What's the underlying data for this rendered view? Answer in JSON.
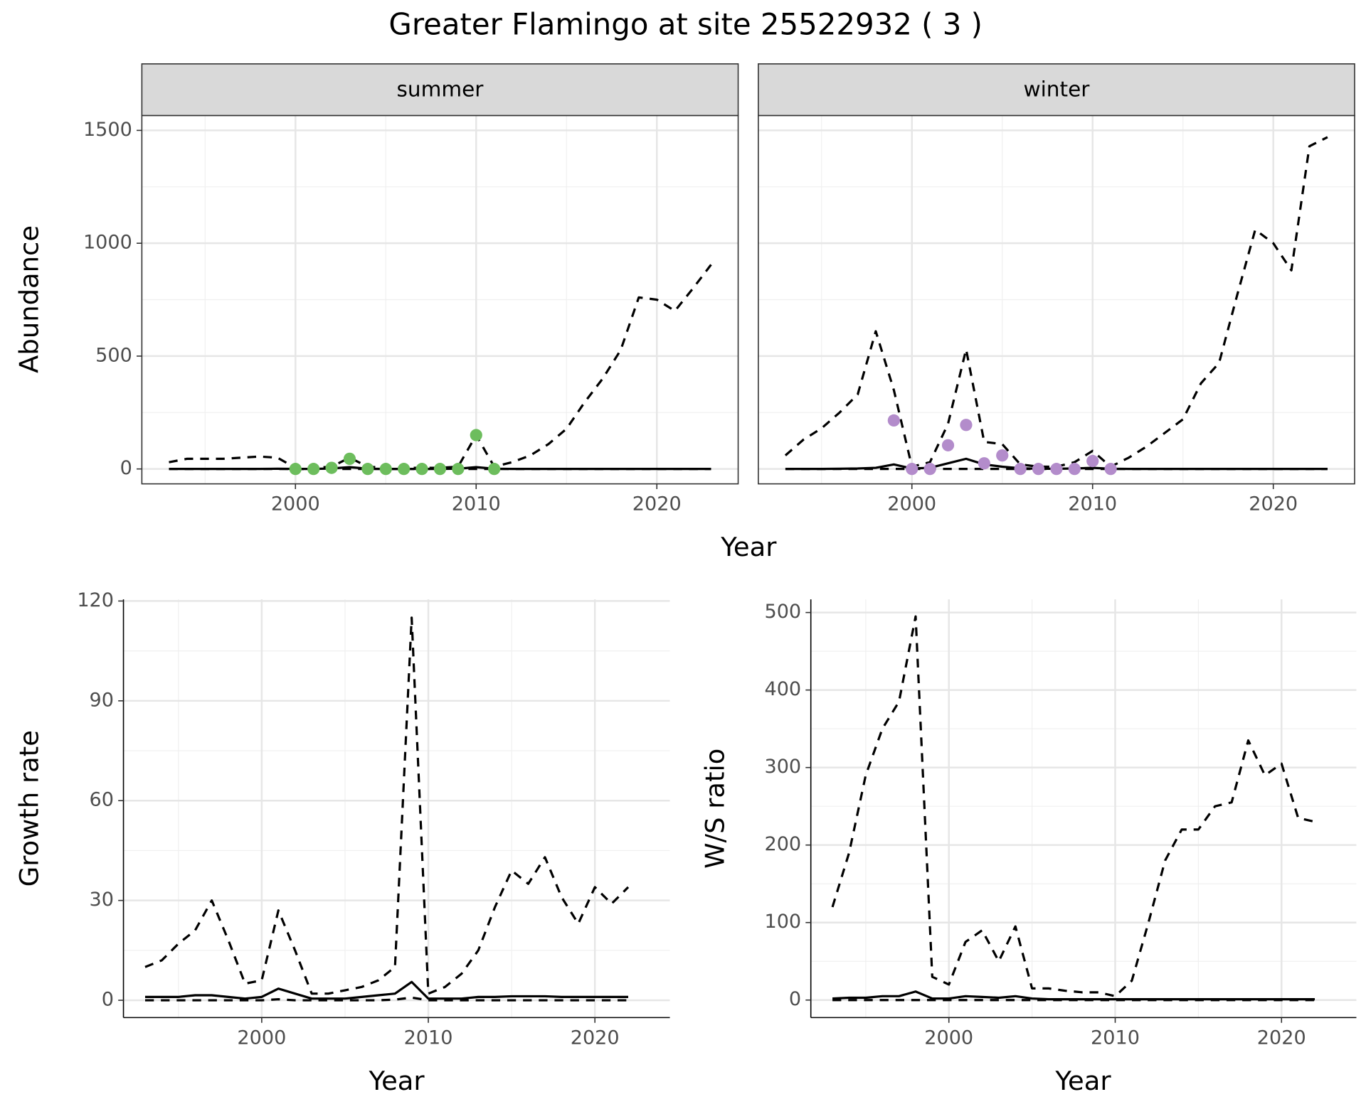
{
  "title": "Greater Flamingo at site 25522932 ( 3 )",
  "chart_data": [
    {
      "type": "line",
      "strip": "summer",
      "xlabel": "Year",
      "ylabel": "Abundance",
      "xlim": [
        1991.5,
        2024.5
      ],
      "ylim": [
        -66,
        1566
      ],
      "xticks": [
        2000,
        2010,
        2020
      ],
      "yticks": [
        0,
        500,
        1000,
        1500
      ],
      "xminor": [
        1995,
        2005,
        2015
      ],
      "yminor": [
        250,
        750,
        1250
      ],
      "grid": true,
      "series": [
        {
          "style": "dashed",
          "color": "#000000",
          "x": [
            1993,
            1994,
            1995,
            1996,
            1997,
            1998,
            1999,
            2000,
            2001,
            2002,
            2003,
            2004,
            2005,
            2006,
            2007,
            2008,
            2009,
            2010,
            2011,
            2012,
            2013,
            2014,
            2015,
            2016,
            2017,
            2018,
            2019,
            2020,
            2021,
            2022,
            2023
          ],
          "values": [
            30,
            45,
            45,
            45,
            50,
            55,
            50,
            5,
            5,
            10,
            50,
            10,
            5,
            5,
            5,
            5,
            10,
            150,
            10,
            30,
            60,
            110,
            178,
            295,
            400,
            527,
            760,
            750,
            700,
            800,
            905
          ]
        },
        {
          "style": "solid",
          "color": "#000000",
          "x": [
            1993,
            1994,
            1995,
            1996,
            1997,
            1998,
            1999,
            2000,
            2001,
            2002,
            2003,
            2004,
            2005,
            2006,
            2007,
            2008,
            2009,
            2010,
            2011,
            2012,
            2013,
            2014,
            2015,
            2016,
            2017,
            2018,
            2019,
            2020,
            2021,
            2022,
            2023
          ],
          "values": [
            0,
            0,
            0,
            0,
            0,
            0,
            1,
            0,
            0,
            2,
            8,
            1,
            0,
            0,
            0,
            0,
            1,
            8,
            1,
            0,
            0,
            0,
            0,
            0,
            0,
            0,
            0,
            0,
            0,
            0,
            0
          ]
        },
        {
          "style": "dashed",
          "color": "#000000",
          "x": [
            1993,
            1994,
            1995,
            1996,
            1997,
            1998,
            1999,
            2000,
            2001,
            2002,
            2003,
            2004,
            2005,
            2006,
            2007,
            2008,
            2009,
            2010,
            2011,
            2012,
            2013,
            2014,
            2015,
            2016,
            2017,
            2018,
            2019,
            2020,
            2021,
            2022,
            2023
          ],
          "values": [
            0,
            0,
            0,
            0,
            0,
            0,
            0,
            0,
            0,
            0,
            0,
            0,
            0,
            0,
            0,
            0,
            0,
            0,
            0,
            0,
            0,
            0,
            0,
            0,
            0,
            0,
            0,
            0,
            0,
            0,
            0
          ]
        },
        {
          "style": "points",
          "color": "#6dbd5d",
          "x": [
            2000,
            2001,
            2002,
            2003,
            2004,
            2005,
            2006,
            2007,
            2008,
            2009,
            2010,
            2011
          ],
          "values": [
            0,
            0,
            5,
            45,
            0,
            0,
            0,
            0,
            0,
            0,
            150,
            0
          ]
        }
      ]
    },
    {
      "type": "line",
      "strip": "winter",
      "xlim": [
        1991.5,
        2024.5
      ],
      "ylim": [
        -66,
        1566
      ],
      "xticks": [
        2000,
        2010,
        2020
      ],
      "yticks": [
        0,
        500,
        1000,
        1500
      ],
      "xminor": [
        1995,
        2005,
        2015
      ],
      "yminor": [
        250,
        750,
        1250
      ],
      "grid": true,
      "series": [
        {
          "style": "dashed",
          "color": "#000000",
          "x": [
            1993,
            1994,
            1995,
            1996,
            1997,
            1998,
            1999,
            2000,
            2001,
            2002,
            2003,
            2004,
            2005,
            2006,
            2007,
            2008,
            2009,
            2010,
            2011,
            2012,
            2013,
            2014,
            2015,
            2016,
            2017,
            2018,
            2019,
            2020,
            2021,
            2022,
            2023
          ],
          "values": [
            60,
            130,
            180,
            250,
            330,
            610,
            350,
            10,
            30,
            200,
            530,
            120,
            110,
            20,
            10,
            10,
            30,
            80,
            10,
            50,
            100,
            160,
            220,
            380,
            470,
            770,
            1060,
            1000,
            880,
            1430,
            1470
          ]
        },
        {
          "style": "solid",
          "color": "#000000",
          "x": [
            1993,
            1994,
            1995,
            1996,
            1997,
            1998,
            1999,
            2000,
            2001,
            2002,
            2003,
            2004,
            2005,
            2006,
            2007,
            2008,
            2009,
            2010,
            2011,
            2012,
            2013,
            2014,
            2015,
            2016,
            2017,
            2018,
            2019,
            2020,
            2021,
            2022,
            2023
          ],
          "values": [
            0,
            0,
            0,
            1,
            2,
            5,
            20,
            2,
            5,
            25,
            45,
            20,
            10,
            3,
            1,
            1,
            2,
            5,
            1,
            0,
            0,
            0,
            0,
            0,
            0,
            0,
            0,
            0,
            0,
            0,
            0
          ]
        },
        {
          "style": "dashed",
          "color": "#000000",
          "x": [
            1993,
            1994,
            1995,
            1996,
            1997,
            1998,
            1999,
            2000,
            2001,
            2002,
            2003,
            2004,
            2005,
            2006,
            2007,
            2008,
            2009,
            2010,
            2011,
            2012,
            2013,
            2014,
            2015,
            2016,
            2017,
            2018,
            2019,
            2020,
            2021,
            2022,
            2023
          ],
          "values": [
            0,
            0,
            0,
            0,
            0,
            0,
            0,
            0,
            0,
            0,
            0,
            0,
            0,
            0,
            0,
            0,
            0,
            0,
            0,
            0,
            0,
            0,
            0,
            0,
            0,
            0,
            0,
            0,
            0,
            0,
            0
          ]
        },
        {
          "style": "points",
          "color": "#b38ccb",
          "x": [
            1999,
            2000,
            2001,
            2002,
            2003,
            2004,
            2005,
            2006,
            2007,
            2008,
            2009,
            2010,
            2011
          ],
          "values": [
            215,
            0,
            0,
            105,
            195,
            25,
            60,
            0,
            0,
            0,
            0,
            35,
            0
          ]
        }
      ]
    },
    {
      "type": "line",
      "xlabel": "Year",
      "ylabel": "Growth rate",
      "xlim": [
        1991.7,
        2024.5
      ],
      "ylim": [
        -5.2,
        120.5
      ],
      "xticks": [
        2000,
        2010,
        2020
      ],
      "yticks": [
        0,
        30,
        60,
        90,
        120
      ],
      "xminor": [
        1995,
        2005,
        2015
      ],
      "yminor": [
        15,
        45,
        75,
        105
      ],
      "grid": true,
      "series": [
        {
          "style": "dashed",
          "color": "#000000",
          "x": [
            1993,
            1994,
            1995,
            1996,
            1997,
            1998,
            1999,
            2000,
            2001,
            2002,
            2003,
            2004,
            2005,
            2006,
            2007,
            2008,
            2009,
            2010,
            2011,
            2012,
            2013,
            2014,
            2015,
            2016,
            2017,
            2018,
            2019,
            2020,
            2021,
            2022
          ],
          "values": [
            10,
            12,
            17,
            21,
            30,
            18,
            5,
            6,
            27,
            15,
            2,
            2,
            3,
            4,
            6,
            10,
            115,
            2,
            4,
            8,
            15,
            28,
            39,
            35,
            43,
            31,
            23,
            34,
            29,
            34
          ]
        },
        {
          "style": "solid",
          "color": "#000000",
          "x": [
            1993,
            1994,
            1995,
            1996,
            1997,
            1998,
            1999,
            2000,
            2001,
            2002,
            2003,
            2004,
            2005,
            2006,
            2007,
            2008,
            2009,
            2010,
            2011,
            2012,
            2013,
            2014,
            2015,
            2016,
            2017,
            2018,
            2019,
            2020,
            2021,
            2022
          ],
          "values": [
            1,
            1,
            1,
            1.5,
            1.5,
            1,
            0.5,
            1,
            3.5,
            2,
            0.5,
            0.5,
            0.5,
            1,
            1.5,
            2,
            5.5,
            0.5,
            0.5,
            0.5,
            1,
            1,
            1.2,
            1.2,
            1.2,
            1,
            1,
            1,
            1,
            1
          ]
        },
        {
          "style": "dashed",
          "color": "#000000",
          "x": [
            1993,
            1994,
            1995,
            1996,
            1997,
            1998,
            1999,
            2000,
            2001,
            2002,
            2003,
            2004,
            2005,
            2006,
            2007,
            2008,
            2009,
            2010,
            2011,
            2012,
            2013,
            2014,
            2015,
            2016,
            2017,
            2018,
            2019,
            2020,
            2021,
            2022
          ],
          "values": [
            0,
            0,
            0,
            0,
            0,
            0,
            0,
            0,
            0.3,
            0,
            0,
            0,
            0,
            0,
            0,
            0.2,
            0.8,
            0,
            0,
            0,
            0,
            0,
            0,
            0,
            0,
            0,
            0,
            0,
            0,
            0
          ]
        }
      ]
    },
    {
      "type": "line",
      "xlabel": "Year",
      "ylabel": "W/S ratio",
      "xlim": [
        1991.7,
        2024.5
      ],
      "ylim": [
        -22.6,
        517
      ],
      "xticks": [
        2000,
        2010,
        2020
      ],
      "yticks": [
        0,
        100,
        200,
        300,
        400,
        500
      ],
      "xminor": [
        1995,
        2005,
        2015
      ],
      "yminor": [
        50,
        150,
        250,
        350,
        450
      ],
      "grid": true,
      "series": [
        {
          "style": "dashed",
          "color": "#000000",
          "x": [
            1993,
            1994,
            1995,
            1996,
            1997,
            1998,
            1999,
            2000,
            2001,
            2002,
            2003,
            2004,
            2005,
            2006,
            2007,
            2008,
            2009,
            2010,
            2011,
            2012,
            2013,
            2014,
            2015,
            2016,
            2017,
            2018,
            2019,
            2020,
            2021,
            2022
          ],
          "values": [
            120,
            190,
            290,
            350,
            385,
            495,
            30,
            20,
            75,
            90,
            50,
            95,
            15,
            15,
            12,
            10,
            10,
            5,
            25,
            100,
            180,
            220,
            220,
            250,
            255,
            335,
            290,
            305,
            235,
            230
          ]
        },
        {
          "style": "solid",
          "color": "#000000",
          "x": [
            1993,
            1994,
            1995,
            1996,
            1997,
            1998,
            1999,
            2000,
            2001,
            2002,
            2003,
            2004,
            2005,
            2006,
            2007,
            2008,
            2009,
            2010,
            2011,
            2012,
            2013,
            2014,
            2015,
            2016,
            2017,
            2018,
            2019,
            2020,
            2021,
            2022
          ],
          "values": [
            2,
            3,
            3,
            5,
            5,
            11,
            2,
            2,
            5,
            4,
            3,
            5,
            2,
            1,
            1,
            1,
            1,
            1,
            1,
            1,
            1,
            1,
            1,
            1,
            1,
            1,
            1,
            1,
            1,
            1
          ]
        },
        {
          "style": "dashed",
          "color": "#000000",
          "x": [
            1993,
            1994,
            1995,
            1996,
            1997,
            1998,
            1999,
            2000,
            2001,
            2002,
            2003,
            2004,
            2005,
            2006,
            2007,
            2008,
            2009,
            2010,
            2011,
            2012,
            2013,
            2014,
            2015,
            2016,
            2017,
            2018,
            2019,
            2020,
            2021,
            2022
          ],
          "values": [
            0,
            0,
            0,
            0,
            0,
            0,
            0,
            0,
            0,
            0,
            0,
            0,
            0,
            0,
            0,
            0,
            0,
            0,
            0,
            0,
            0,
            0,
            0,
            0,
            0,
            0,
            0,
            0,
            0,
            0
          ]
        }
      ]
    }
  ]
}
